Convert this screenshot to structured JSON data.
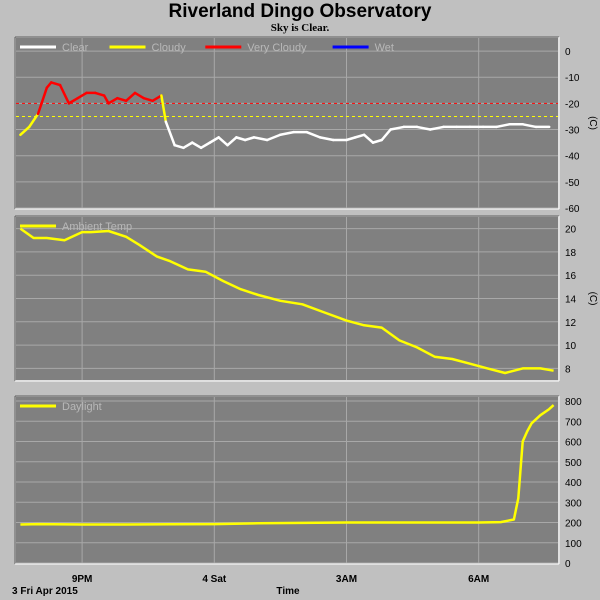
{
  "title": "Riverland Dingo Observatory",
  "subtitle": "Sky is Clear.",
  "date_label": "3 Fri Apr 2015",
  "x_axis_label": "Time",
  "x_ticks": [
    {
      "label": "9PM",
      "hour": 21
    },
    {
      "label": "4 Sat",
      "hour": 24
    },
    {
      "label": "3AM",
      "hour": 27
    },
    {
      "label": "6AM",
      "hour": 30
    }
  ],
  "x_range_hours": [
    19.5,
    31.8
  ],
  "colors": {
    "background": "#c0c0c0",
    "plot_bg": "#808080",
    "grid": "#a8a8a8",
    "clear": "#ffffff",
    "cloudy": "#ffff00",
    "very_cloudy": "#ff0000",
    "wet": "#0000ff",
    "ambient": "#ffff00",
    "daylight": "#ffff00"
  },
  "chart_data": [
    {
      "type": "line",
      "panel": "sky",
      "ylabel": "(C)",
      "ylim": [
        -60,
        5
      ],
      "yticks": [
        0,
        -10,
        -20,
        -30,
        -40,
        -50,
        -60
      ],
      "thresholds": [
        {
          "value": -20,
          "color": "#ff0000"
        },
        {
          "value": -25,
          "color": "#ffff00"
        }
      ],
      "legend": [
        {
          "name": "Clear",
          "color": "#ffffff"
        },
        {
          "name": "Cloudy",
          "color": "#ffff00"
        },
        {
          "name": "Very Cloudy",
          "color": "#ff0000"
        },
        {
          "name": "Wet",
          "color": "#0000ff"
        }
      ],
      "x": [
        19.6,
        19.8,
        20.0,
        20.2,
        20.3,
        20.5,
        20.7,
        20.9,
        21.1,
        21.3,
        21.5,
        21.6,
        21.8,
        22.0,
        22.2,
        22.4,
        22.6,
        22.8,
        22.9,
        23.1,
        23.3,
        23.5,
        23.7,
        23.9,
        24.1,
        24.3,
        24.5,
        24.7,
        24.9,
        25.2,
        25.5,
        25.8,
        26.1,
        26.4,
        26.7,
        27.0,
        27.2,
        27.4,
        27.6,
        27.8,
        28.0,
        28.3,
        28.6,
        28.9,
        29.2,
        29.5,
        29.8,
        30.1,
        30.4,
        30.7,
        31.0,
        31.3,
        31.6
      ],
      "y": [
        -32,
        -29,
        -24,
        -14,
        -12,
        -13,
        -20,
        -18,
        -16,
        -16,
        -17,
        -20,
        -18,
        -19,
        -16,
        -18,
        -19,
        -17,
        -27,
        -36,
        -37,
        -35,
        -37,
        -35,
        -33,
        -36,
        -33,
        -34,
        -33,
        -34,
        -32,
        -31,
        -31,
        -33,
        -34,
        -34,
        -33,
        -32,
        -35,
        -34,
        -30,
        -29,
        -29,
        -30,
        -29,
        -29,
        -29,
        -29,
        -29,
        -28,
        -28,
        -29,
        -29
      ],
      "state": [
        "Clear",
        "Cloudy",
        "Cloudy",
        "Very Cloudy",
        "Very Cloudy",
        "Very Cloudy",
        "Very Cloudy",
        "Very Cloudy",
        "Very Cloudy",
        "Very Cloudy",
        "Very Cloudy",
        "Very Cloudy",
        "Very Cloudy",
        "Very Cloudy",
        "Very Cloudy",
        "Very Cloudy",
        "Very Cloudy",
        "Very Cloudy",
        "Cloudy",
        "Clear",
        "Clear",
        "Clear",
        "Clear",
        "Clear",
        "Clear",
        "Clear",
        "Clear",
        "Clear",
        "Clear",
        "Clear",
        "Clear",
        "Clear",
        "Clear",
        "Clear",
        "Clear",
        "Clear",
        "Clear",
        "Clear",
        "Clear",
        "Clear",
        "Clear",
        "Clear",
        "Clear",
        "Clear",
        "Clear",
        "Clear",
        "Clear",
        "Clear",
        "Clear",
        "Clear",
        "Clear",
        "Clear",
        "Clear"
      ]
    },
    {
      "type": "line",
      "panel": "ambient",
      "ylabel": "(C)",
      "ylim": [
        7,
        21
      ],
      "yticks": [
        20,
        18,
        16,
        14,
        12,
        10,
        8
      ],
      "legend": [
        {
          "name": "Ambient Temp",
          "color": "#ffff00"
        }
      ],
      "series": [
        {
          "name": "Ambient Temp",
          "x": [
            19.6,
            19.9,
            20.2,
            20.6,
            21.0,
            21.2,
            21.6,
            22.0,
            22.3,
            22.7,
            23.0,
            23.4,
            23.8,
            24.2,
            24.6,
            25.0,
            25.5,
            26.0,
            26.5,
            27.0,
            27.4,
            27.8,
            28.2,
            28.6,
            29.0,
            29.4,
            29.8,
            30.2,
            30.6,
            31.0,
            31.4,
            31.7
          ],
          "values": [
            20.0,
            19.2,
            19.2,
            19.0,
            19.7,
            19.7,
            19.8,
            19.3,
            18.6,
            17.6,
            17.2,
            16.5,
            16.3,
            15.5,
            14.8,
            14.3,
            13.8,
            13.5,
            12.8,
            12.1,
            11.7,
            11.5,
            10.4,
            9.8,
            9.0,
            8.8,
            8.4,
            8.0,
            7.6,
            8.0,
            8.0,
            7.8
          ]
        }
      ]
    },
    {
      "type": "line",
      "panel": "daylight",
      "ylabel": "",
      "ylim": [
        0,
        820
      ],
      "yticks": [
        800,
        700,
        600,
        500,
        400,
        300,
        200,
        100,
        0
      ],
      "legend": [
        {
          "name": "Daylight",
          "color": "#ffff00"
        }
      ],
      "series": [
        {
          "name": "Daylight",
          "x": [
            19.6,
            20.0,
            21.0,
            22.0,
            23.0,
            24.0,
            25.0,
            26.0,
            27.0,
            28.0,
            29.0,
            30.0,
            30.5,
            30.8,
            30.9,
            31.0,
            31.1,
            31.2,
            31.4,
            31.6,
            31.7
          ],
          "values": [
            190,
            192,
            190,
            190,
            191,
            192,
            196,
            198,
            200,
            200,
            200,
            200,
            202,
            215,
            320,
            600,
            650,
            690,
            730,
            760,
            780
          ]
        }
      ]
    }
  ]
}
